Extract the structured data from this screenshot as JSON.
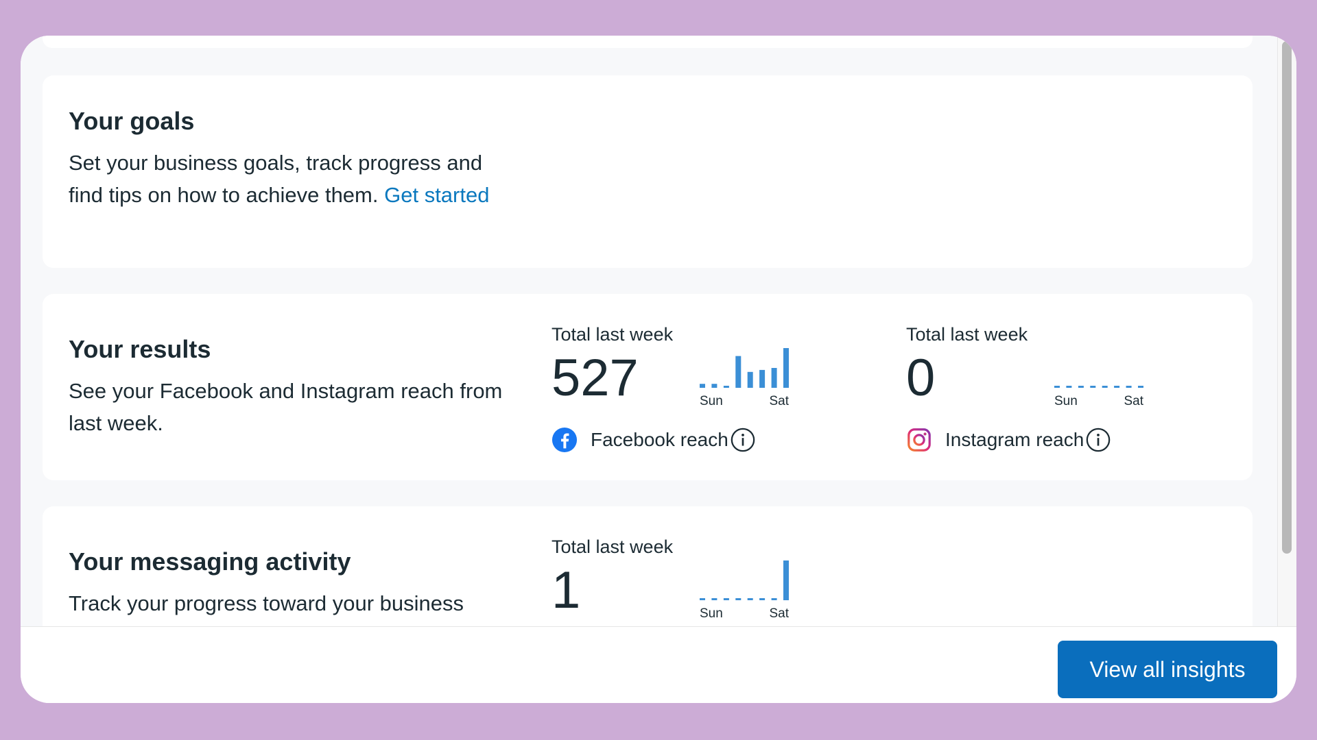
{
  "goals": {
    "title": "Your goals",
    "desc_text": "Set your business goals, track progress and find tips on how to achieve them.",
    "link": "Get started"
  },
  "results": {
    "title": "Your results",
    "desc_text": "See your Facebook and Instagram reach from last week.",
    "facebook": {
      "label": "Total last week",
      "value": "527",
      "name": "Facebook reach",
      "spark_start": "Sun",
      "spark_end": "Sat",
      "spark_values": [
        2,
        2,
        0,
        16,
        8,
        9,
        10,
        20
      ],
      "color": "#3b8fd6"
    },
    "instagram": {
      "label": "Total last week",
      "value": "0",
      "name": "Instagram reach",
      "spark_start": "Sun",
      "spark_end": "Sat",
      "spark_values": [
        0,
        0,
        0,
        0,
        0,
        0,
        0,
        0
      ],
      "color": "#3b8fd6"
    }
  },
  "messaging": {
    "title": "Your messaging activity",
    "desc_text": "Track your progress toward your business",
    "metric": {
      "label": "Total last week",
      "value": "1",
      "spark_start": "Sun",
      "spark_end": "Sat",
      "spark_values": [
        0,
        0,
        0,
        0,
        0,
        0,
        0,
        1
      ],
      "color": "#3b8fd6"
    }
  },
  "footer": {
    "button_label": "View all insights"
  },
  "colors": {
    "accent": "#0a6ebd",
    "link": "#0a78be",
    "background": "#ccacd6"
  },
  "icons": {
    "facebook": "facebook-icon",
    "instagram": "instagram-icon",
    "info": "info-icon"
  }
}
